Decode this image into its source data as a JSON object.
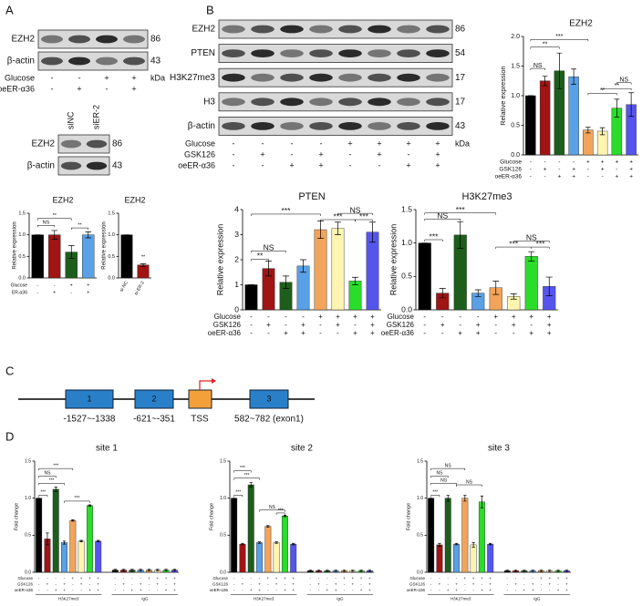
{
  "panel_labels": [
    "A",
    "B",
    "C",
    "D"
  ],
  "blot_A": {
    "rows": [
      {
        "label": "EZH2",
        "kda": "86"
      },
      {
        "label": "β-actin",
        "kda": "43"
      }
    ],
    "conditions": [
      {
        "name": "Glucose",
        "signs": [
          "-",
          "-",
          "+",
          "+"
        ]
      },
      {
        "name": "oeER-α36",
        "signs": [
          "-",
          "+",
          "-",
          "+"
        ]
      }
    ],
    "unit": "kDa"
  },
  "blot_A2": {
    "lanes": [
      "siNC",
      "siER-2"
    ],
    "rows": [
      {
        "label": "EZH2",
        "kda": "86"
      },
      {
        "label": "β-actin",
        "kda": "43"
      }
    ]
  },
  "blot_B": {
    "rows": [
      {
        "label": "EZH2",
        "kda": "86"
      },
      {
        "label": "PTEN",
        "kda": "54"
      },
      {
        "label": "H3K27me3",
        "kda": "17"
      },
      {
        "label": "H3",
        "kda": "17"
      },
      {
        "label": "β-actin",
        "kda": "43"
      }
    ],
    "conditions": [
      {
        "name": "Glucose",
        "signs": [
          "-",
          "-",
          "-",
          "-",
          "+",
          "+",
          "+",
          "+"
        ]
      },
      {
        "name": "GSK126",
        "signs": [
          "-",
          "+",
          "-",
          "+",
          "-",
          "+",
          "-",
          "+"
        ]
      },
      {
        "name": "oeER-α36",
        "signs": [
          "-",
          "-",
          "+",
          "+",
          "-",
          "-",
          "+",
          "+"
        ]
      }
    ],
    "unit": "kDa"
  },
  "diagram_C": {
    "boxes": [
      "1",
      "2",
      "3"
    ],
    "labels": [
      "-1527~-1338",
      "-621~-351",
      "TSS",
      "582~782 (exon1)"
    ]
  },
  "chart_data": [
    {
      "type": "bar",
      "title": "EZH2",
      "y_label": "Relative expression",
      "values": [
        1.0,
        1.0,
        0.6,
        1.0
      ],
      "errors": [
        0,
        0.1,
        0.15,
        0.07
      ],
      "colors": [
        "#000000",
        "#a01414",
        "#1d5e1d",
        "#5aa0e6"
      ],
      "conditions": [
        {
          "name": "Glucose",
          "signs": [
            "-",
            "-",
            "+",
            "+"
          ]
        },
        {
          "name": "ER-α36",
          "signs": [
            "-",
            "+",
            "-",
            "+"
          ]
        }
      ],
      "annotations": [
        "**",
        "NS",
        "**"
      ],
      "ylim": [
        0,
        1.5
      ],
      "yticks": [
        {
          "value": 0,
          "label": "0.0"
        },
        0.5,
        {
          "value": 1,
          "label": "1.0"
        },
        1.5
      ]
    },
    {
      "type": "bar",
      "title": "EZH2",
      "y_label": "Relative expression",
      "categories": [
        "si-NC",
        "si-ER-2"
      ],
      "values": [
        1.0,
        0.3
      ],
      "errors": [
        0,
        0.03
      ],
      "colors": [
        "#000000",
        "#a01414"
      ],
      "annotations": [
        "**"
      ],
      "ylim": [
        0,
        1.5
      ],
      "yticks": [
        {
          "value": 0,
          "label": "0.0"
        },
        0.5,
        {
          "value": 1,
          "label": "1.0"
        },
        1.5
      ]
    },
    {
      "type": "bar",
      "title": "EZH2",
      "y_label": "Relative expression",
      "values": [
        1.0,
        1.25,
        1.42,
        1.32,
        0.42,
        0.4,
        0.79,
        0.85
      ],
      "errors": [
        0,
        0.08,
        0.3,
        0.13,
        0.05,
        0.06,
        0.15,
        0.2
      ],
      "colors": [
        "#000000",
        "#a01414",
        "#1d5e1d",
        "#5aa0e6",
        "#f2a55a",
        "#fff5b0",
        "#2add2a",
        "#5555ee"
      ],
      "conditions": [
        {
          "name": "Glucose",
          "signs": [
            "-",
            "-",
            "-",
            "-",
            "+",
            "+",
            "+",
            "+"
          ]
        },
        {
          "name": "GSK126",
          "signs": [
            "-",
            "+",
            "-",
            "+",
            "-",
            "+",
            "-",
            "+"
          ]
        },
        {
          "name": "oeER-α36",
          "signs": [
            "-",
            "-",
            "+",
            "+",
            "-",
            "-",
            "+",
            "+"
          ]
        }
      ],
      "annotations": [
        "***",
        "**",
        "NS",
        "NS",
        "**",
        "**"
      ],
      "ylim": [
        0,
        2
      ],
      "yticks": [
        {
          "value": 0,
          "label": "0.0"
        },
        0.5,
        {
          "value": 1,
          "label": "1.0"
        },
        1.5,
        {
          "value": 2,
          "label": "2.0"
        }
      ]
    },
    {
      "type": "bar",
      "title": "PTEN",
      "y_label": "Relative expression",
      "values": [
        1.0,
        1.65,
        1.1,
        1.75,
        3.2,
        3.25,
        1.15,
        3.1
      ],
      "errors": [
        0,
        0.3,
        0.25,
        0.25,
        0.35,
        0.25,
        0.15,
        0.4
      ],
      "colors": [
        "#000000",
        "#a01414",
        "#1d5e1d",
        "#5aa0e6",
        "#f2a55a",
        "#fff5b0",
        "#2add2a",
        "#5555ee"
      ],
      "conditions": [
        {
          "name": "Glucose",
          "signs": [
            "-",
            "-",
            "-",
            "-",
            "+",
            "+",
            "+",
            "+"
          ]
        },
        {
          "name": "GSK126",
          "signs": [
            "-",
            "+",
            "-",
            "+",
            "-",
            "+",
            "-",
            "+"
          ]
        },
        {
          "name": "oeER-α36",
          "signs": [
            "-",
            "-",
            "+",
            "+",
            "-",
            "-",
            "+",
            "+"
          ]
        }
      ],
      "annotations": [
        "***",
        "NS",
        "**",
        "***",
        "***",
        "NS"
      ],
      "ylim": [
        0,
        4
      ],
      "yticks": [
        0,
        1,
        2,
        3,
        4
      ]
    },
    {
      "type": "bar",
      "title": "H3K27me3",
      "y_label": "Relative expression",
      "values": [
        1.0,
        0.25,
        1.12,
        0.25,
        0.33,
        0.2,
        0.8,
        0.35
      ],
      "errors": [
        0,
        0.07,
        0.2,
        0.05,
        0.1,
        0.04,
        0.07,
        0.14
      ],
      "colors": [
        "#000000",
        "#a01414",
        "#1d5e1d",
        "#5aa0e6",
        "#f2a55a",
        "#fff5b0",
        "#2add2a",
        "#5555ee"
      ],
      "conditions": [
        {
          "name": "Glucose",
          "signs": [
            "-",
            "-",
            "-",
            "-",
            "+",
            "+",
            "+",
            "+"
          ]
        },
        {
          "name": "GSK126",
          "signs": [
            "-",
            "+",
            "-",
            "+",
            "-",
            "+",
            "-",
            "+"
          ]
        },
        {
          "name": "oeER-α36",
          "signs": [
            "-",
            "-",
            "+",
            "+",
            "-",
            "-",
            "+",
            "+"
          ]
        }
      ],
      "annotations": [
        "***",
        "NS",
        "***",
        "***",
        "***",
        "NS"
      ],
      "ylim": [
        0,
        1.5
      ],
      "yticks": [
        {
          "value": 0,
          "label": "0.0"
        },
        0.5,
        {
          "value": 1,
          "label": "1.0"
        },
        1.5
      ]
    },
    {
      "type": "bar",
      "title": "site 1",
      "y_label": "Fold change",
      "values": [
        1.0,
        0.45,
        1.12,
        0.4,
        0.7,
        0.42,
        0.9,
        0.42,
        0.03,
        0.03,
        0.03,
        0.03,
        0.03,
        0.03,
        0.03,
        0.03
      ],
      "errors": [
        0,
        0.08,
        0.03,
        0.02,
        0.01,
        0.01,
        0.01,
        0.01,
        0.01,
        0.01,
        0.01,
        0.01,
        0.01,
        0.01,
        0.01,
        0.01
      ],
      "colors": [
        "#000000",
        "#a01414",
        "#1d5e1d",
        "#5aa0e6",
        "#f2a55a",
        "#fff5b0",
        "#2add2a",
        "#5555ee",
        "#000000",
        "#a01414",
        "#1d5e1d",
        "#5aa0e6",
        "#f2a55a",
        "#fff5b0",
        "#2add2a",
        "#5555ee"
      ],
      "conditions": [
        {
          "name": "Glucose",
          "signs": [
            "-",
            "-",
            "-",
            "-",
            "+",
            "+",
            "+",
            "+",
            "-",
            "-",
            "-",
            "-",
            "+",
            "+",
            "+",
            "+"
          ]
        },
        {
          "name": "GSK126",
          "signs": [
            "-",
            "+",
            "-",
            "+",
            "-",
            "+",
            "-",
            "+",
            "-",
            "+",
            "-",
            "+",
            "-",
            "+",
            "-",
            "+"
          ]
        },
        {
          "name": "oeER-α36",
          "signs": [
            "-",
            "-",
            "+",
            "+",
            "-",
            "-",
            "+",
            "+",
            "-",
            "-",
            "+",
            "+",
            "-",
            "-",
            "+",
            "+"
          ]
        }
      ],
      "group_labels": [
        "H3K27me3",
        "IgG"
      ],
      "annotations": [
        "***",
        "***",
        "NS",
        "***",
        "***"
      ],
      "ylim": [
        0,
        1.5
      ],
      "yticks": [
        {
          "value": 0,
          "label": "0.0"
        },
        0.5,
        {
          "value": 1,
          "label": "1.0"
        },
        1.5
      ]
    },
    {
      "type": "bar",
      "title": "site 2",
      "y_label": "Fold change",
      "values": [
        1.0,
        0.38,
        1.18,
        0.4,
        0.62,
        0.4,
        0.76,
        0.38,
        0.02,
        0.02,
        0.02,
        0.02,
        0.02,
        0.02,
        0.02,
        0.02
      ],
      "errors": [
        0,
        0.01,
        0.03,
        0.01,
        0.01,
        0.01,
        0.01,
        0.01,
        0.01,
        0.01,
        0.01,
        0.01,
        0.01,
        0.01,
        0.01,
        0.01
      ],
      "colors": [
        "#000000",
        "#a01414",
        "#1d5e1d",
        "#5aa0e6",
        "#f2a55a",
        "#fff5b0",
        "#2add2a",
        "#5555ee",
        "#000000",
        "#a01414",
        "#1d5e1d",
        "#5aa0e6",
        "#f2a55a",
        "#fff5b0",
        "#2add2a",
        "#5555ee"
      ],
      "conditions": [
        {
          "name": "Glucose",
          "signs": [
            "-",
            "-",
            "-",
            "-",
            "+",
            "+",
            "+",
            "+",
            "-",
            "-",
            "-",
            "-",
            "+",
            "+",
            "+",
            "+"
          ]
        },
        {
          "name": "GSK126",
          "signs": [
            "-",
            "+",
            "-",
            "+",
            "-",
            "+",
            "-",
            "+",
            "-",
            "+",
            "-",
            "+",
            "-",
            "+",
            "-",
            "+"
          ]
        },
        {
          "name": "oeER-α36",
          "signs": [
            "-",
            "-",
            "+",
            "+",
            "-",
            "-",
            "+",
            "+",
            "-",
            "-",
            "+",
            "+",
            "-",
            "-",
            "+",
            "+"
          ]
        }
      ],
      "group_labels": [
        "H3K27me3",
        "IgG"
      ],
      "annotations": [
        "***",
        "***",
        "***",
        "NS",
        "***"
      ],
      "ylim": [
        0,
        1.5
      ],
      "yticks": [
        {
          "value": 0,
          "label": "0.0"
        },
        0.5,
        {
          "value": 1,
          "label": "1.0"
        },
        1.5
      ]
    },
    {
      "type": "bar",
      "title": "site 3",
      "y_label": "Fold change",
      "values": [
        1.0,
        0.37,
        1.0,
        0.38,
        1.0,
        0.37,
        0.95,
        0.38,
        0.02,
        0.02,
        0.02,
        0.02,
        0.02,
        0.02,
        0.02,
        0.02
      ],
      "errors": [
        0,
        0.02,
        0.04,
        0.01,
        0.04,
        0.03,
        0.08,
        0.01,
        0.01,
        0.01,
        0.01,
        0.01,
        0.01,
        0.01,
        0.01,
        0.01
      ],
      "colors": [
        "#000000",
        "#a01414",
        "#1d5e1d",
        "#5aa0e6",
        "#f2a55a",
        "#fff5b0",
        "#2add2a",
        "#5555ee",
        "#000000",
        "#a01414",
        "#1d5e1d",
        "#5aa0e6",
        "#f2a55a",
        "#fff5b0",
        "#2add2a",
        "#5555ee"
      ],
      "conditions": [
        {
          "name": "Glucose",
          "signs": [
            "-",
            "-",
            "-",
            "-",
            "+",
            "+",
            "+",
            "+",
            "-",
            "-",
            "-",
            "-",
            "+",
            "+",
            "+",
            "+"
          ]
        },
        {
          "name": "GSK126",
          "signs": [
            "-",
            "+",
            "-",
            "+",
            "-",
            "+",
            "-",
            "+",
            "-",
            "+",
            "-",
            "+",
            "-",
            "+",
            "-",
            "+"
          ]
        },
        {
          "name": "oeER-α36",
          "signs": [
            "-",
            "-",
            "+",
            "+",
            "-",
            "-",
            "+",
            "+",
            "-",
            "-",
            "+",
            "+",
            "-",
            "-",
            "+",
            "+"
          ]
        }
      ],
      "group_labels": [
        "H3K27me3",
        "IgG"
      ],
      "annotations": [
        "***",
        "NS",
        "NS",
        "NS",
        "NS"
      ],
      "ylim": [
        0,
        1.5
      ],
      "yticks": [
        {
          "value": 0,
          "label": "0.0"
        },
        0.5,
        {
          "value": 1,
          "label": "1.0"
        },
        1.5
      ]
    }
  ]
}
